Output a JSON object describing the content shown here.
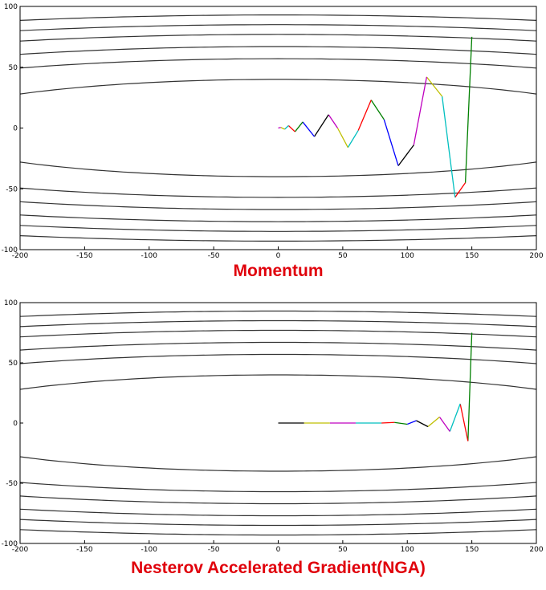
{
  "chart_data": [
    {
      "type": "line",
      "title": "Momentum",
      "x": [
        150,
        145,
        137,
        127,
        115,
        105,
        93,
        82,
        72,
        62,
        54,
        46,
        39,
        28,
        19,
        13,
        8,
        5,
        2,
        0
      ],
      "y": [
        75,
        -45,
        -57,
        26,
        42,
        -14,
        -31,
        7,
        23,
        -2,
        -16,
        0,
        11,
        -7,
        5,
        -3,
        2,
        -1,
        0.5,
        0
      ],
      "colors": [
        "#008000",
        "#ff0000",
        "#00bfbf",
        "#bfbf00",
        "#bf00bf",
        "#000000",
        "#0000ff"
      ],
      "xlim": [
        -200,
        200
      ],
      "ylim": [
        -100,
        100
      ],
      "xticks": [
        -200,
        -150,
        -100,
        -50,
        0,
        50,
        100,
        150,
        200
      ],
      "yticks": [
        -100,
        -50,
        0,
        50,
        100
      ]
    },
    {
      "type": "line",
      "title": "Nesterov Accelerated Gradient(NGA)",
      "x": [
        150,
        147,
        141,
        133,
        125,
        116,
        107,
        100,
        90,
        80,
        60,
        40,
        20,
        0
      ],
      "y": [
        75,
        -15,
        16,
        -7,
        5,
        -3,
        2,
        -1,
        0.5,
        0,
        0,
        0,
        0,
        0
      ],
      "colors": [
        "#008000",
        "#ff0000",
        "#00bfbf",
        "#bf00bf",
        "#bfbf00",
        "#000000",
        "#0000ff"
      ],
      "xlim": [
        -200,
        200
      ],
      "ylim": [
        -100,
        100
      ],
      "xticks": [
        -200,
        -150,
        -100,
        -50,
        0,
        50,
        100,
        150,
        200
      ],
      "yticks": [
        -100,
        -50,
        0,
        50,
        100
      ]
    }
  ]
}
